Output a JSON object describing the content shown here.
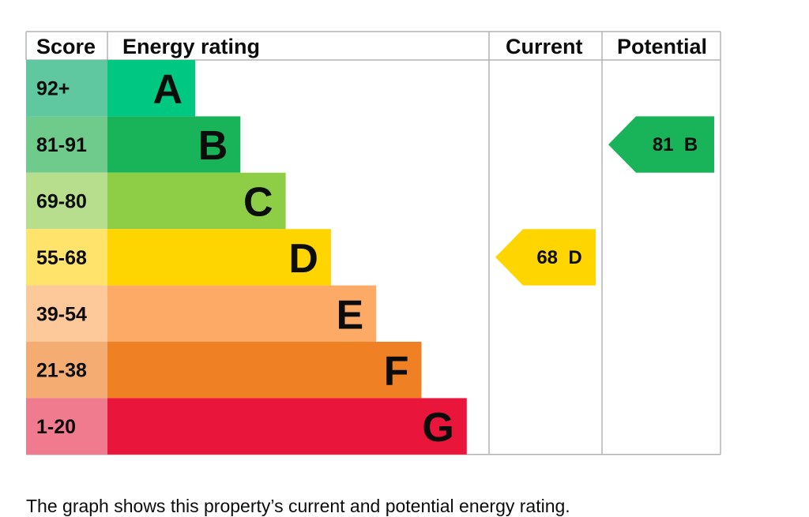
{
  "table": {
    "headers": {
      "score": "Score",
      "rating": "Energy rating",
      "current": "Current",
      "potential": "Potential"
    }
  },
  "chart_data": {
    "type": "bar",
    "bands": [
      {
        "letter": "A",
        "range": "92+",
        "min": 92,
        "max": 100,
        "color": "#00c781",
        "score_bg": "#5fc8a0"
      },
      {
        "letter": "B",
        "range": "81-91",
        "min": 81,
        "max": 91,
        "color": "#19b459",
        "score_bg": "#6fcb8c"
      },
      {
        "letter": "C",
        "range": "69-80",
        "min": 69,
        "max": 80,
        "color": "#8dce46",
        "score_bg": "#b6de8c"
      },
      {
        "letter": "D",
        "range": "55-68",
        "min": 55,
        "max": 68,
        "color": "#ffd500",
        "score_bg": "#ffe36a"
      },
      {
        "letter": "E",
        "range": "39-54",
        "min": 39,
        "max": 54,
        "color": "#fcaa65",
        "score_bg": "#fdc89a"
      },
      {
        "letter": "F",
        "range": "21-38",
        "min": 21,
        "max": 38,
        "color": "#ef8023",
        "score_bg": "#f4ac72"
      },
      {
        "letter": "G",
        "range": "1-20",
        "min": 1,
        "max": 20,
        "color": "#e9153b",
        "score_bg": "#f07a8e"
      }
    ],
    "current": {
      "score": 68,
      "letter": "D",
      "label": "68  D",
      "color": "#ffd500"
    },
    "potential": {
      "score": 81,
      "letter": "B",
      "label": "81  B",
      "color": "#19b459"
    }
  },
  "caption": "The graph shows this property’s current and potential energy rating."
}
